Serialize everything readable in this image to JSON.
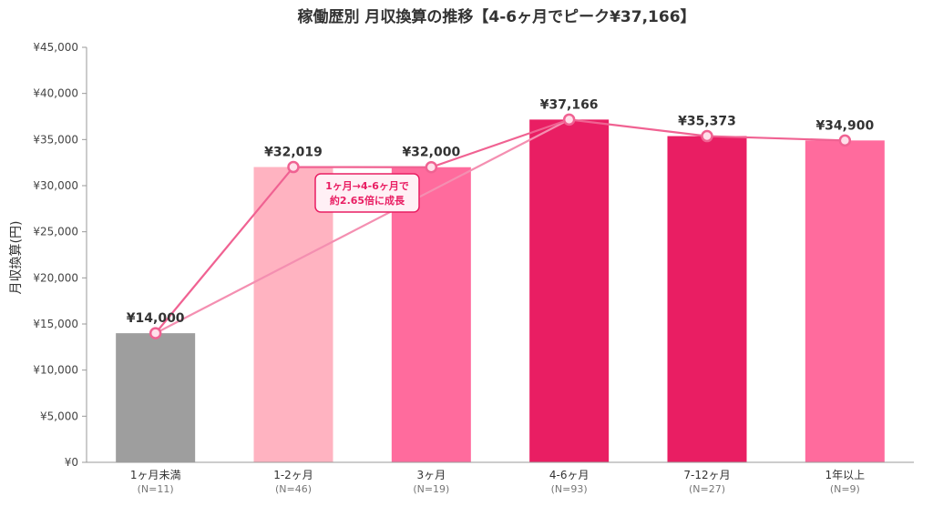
{
  "chart_data": {
    "type": "bar",
    "title": "稼働歴別 月収換算の推移【4-6ヶ月でピーク¥37,166】",
    "ylabel": "月収換算(円)",
    "xlabel": "",
    "ylim": [
      0,
      45000
    ],
    "yticks": [
      "¥0",
      "¥5,000",
      "¥10,000",
      "¥15,000",
      "¥20,000",
      "¥25,000",
      "¥30,000",
      "¥35,000",
      "¥40,000",
      "¥45,000"
    ],
    "ytick_values": [
      0,
      5000,
      10000,
      15000,
      20000,
      25000,
      30000,
      35000,
      40000,
      45000
    ],
    "categories": [
      "1ヶ月未満",
      "1-2ヶ月",
      "3ヶ月",
      "4-6ヶ月",
      "7-12ヶ月",
      "1年以上"
    ],
    "sample_sizes": [
      "(N=11)",
      "(N=46)",
      "(N=19)",
      "(N=93)",
      "(N=27)",
      "(N=9)"
    ],
    "values": [
      14000,
      32019,
      32000,
      37166,
      35373,
      34900
    ],
    "value_labels": [
      "¥14,000",
      "¥32,019",
      "¥32,000",
      "¥37,166",
      "¥35,373",
      "¥34,900"
    ],
    "bar_colors": [
      "#9e9e9e",
      "#ffb3c1",
      "#ff6b9d",
      "#e91e63",
      "#e91e63",
      "#ff6b9d"
    ],
    "line_color": "#f06292",
    "trend_color": "#f48fb1",
    "grid": false,
    "annotation": {
      "lines": [
        "1ヶ月→4-6ヶ月で",
        "約2.65倍に成長"
      ],
      "from_category": "1ヶ月未満",
      "to_category": "4-6ヶ月"
    }
  }
}
